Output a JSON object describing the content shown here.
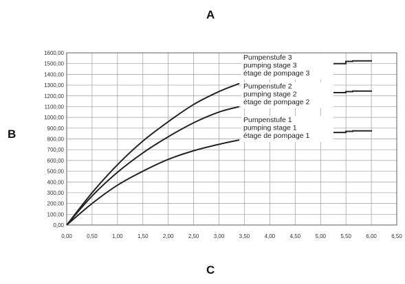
{
  "labels": {
    "top": "A",
    "left": "B",
    "bottom": "C"
  },
  "chart_data": {
    "type": "line",
    "title": "",
    "xlabel": "C",
    "ylabel": "B",
    "xlim": [
      0,
      6.5
    ],
    "ylim": [
      0,
      1600
    ],
    "x_ticks": [
      "0,00",
      "0,50",
      "1,00",
      "1,50",
      "2,00",
      "2,50",
      "3,00",
      "3,50",
      "4,00",
      "4,50",
      "5,00",
      "5,50",
      "6,00",
      "6,50"
    ],
    "y_ticks": [
      "0,00",
      "100,00",
      "200,00",
      "300,00",
      "400,00",
      "500,00",
      "600,00",
      "700,00",
      "800,00",
      "900,00",
      "1000,00",
      "1100,00",
      "1200,00",
      "1300,00",
      "1400,00",
      "1500,00",
      "1600,00"
    ],
    "grid": true,
    "series": [
      {
        "name_lines": [
          "Pumpenstufe 3",
          "pumping stage 3",
          "étage de pompage 3"
        ],
        "color": "#222222",
        "x": [
          0,
          0.5,
          1.0,
          1.5,
          2.0,
          2.5,
          3.0,
          3.4
        ],
        "y": [
          0,
          300,
          560,
          780,
          960,
          1120,
          1240,
          1315
        ],
        "legend_sample": [
          1500,
          1520,
          1525
        ]
      },
      {
        "name_lines": [
          "Pumpenstufe 2",
          "pumping stage 2",
          "étage de pompage 2"
        ],
        "color": "#222222",
        "x": [
          0,
          0.5,
          1.0,
          1.5,
          2.0,
          2.5,
          3.0,
          3.4
        ],
        "y": [
          0,
          270,
          490,
          670,
          820,
          950,
          1050,
          1100
        ],
        "legend_sample": [
          1230,
          1240,
          1245
        ]
      },
      {
        "name_lines": [
          "Pumpenstufe 1",
          "pumping stage 1",
          "étage de pompage 1"
        ],
        "color": "#222222",
        "x": [
          0,
          0.5,
          1.0,
          1.5,
          2.0,
          2.5,
          3.0,
          3.4
        ],
        "y": [
          0,
          200,
          370,
          500,
          610,
          690,
          750,
          790
        ],
        "legend_sample": [
          860,
          870,
          875
        ]
      }
    ]
  }
}
